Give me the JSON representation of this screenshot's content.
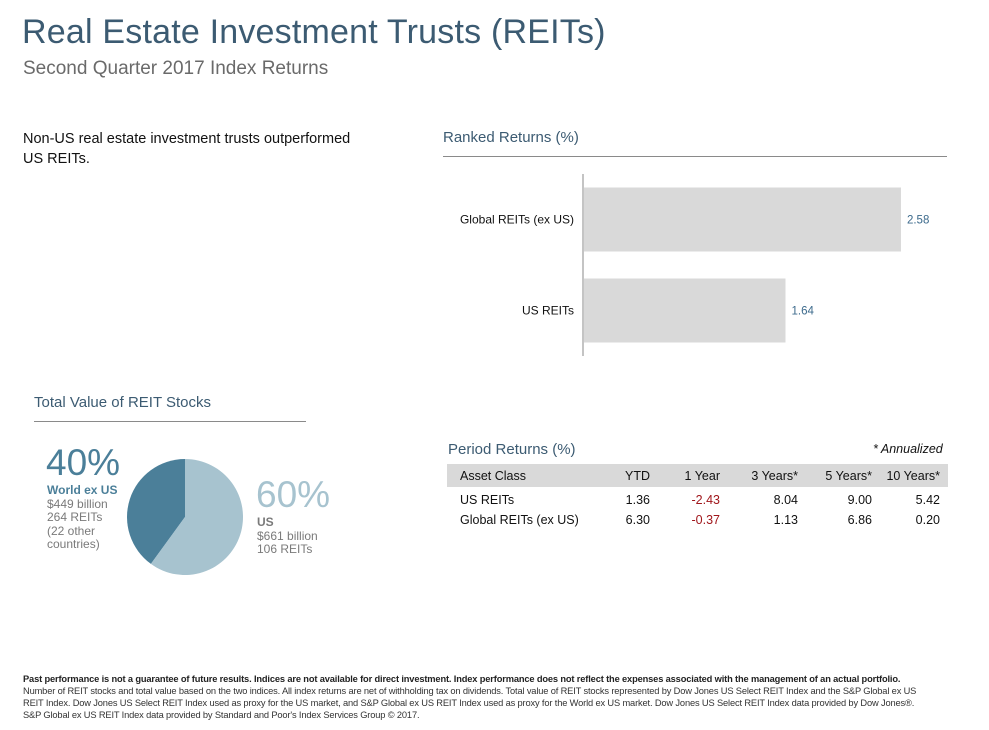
{
  "header": {
    "title": "Real Estate Investment Trusts (REITs)",
    "subtitle": "Second Quarter 2017 Index Returns"
  },
  "intro_text": "Non-US real estate investment trusts outperformed US REITs.",
  "colors": {
    "title": "#3c5b72",
    "bar": "#d9d9d9",
    "bar_value": "#3c6a8c",
    "pie_world": "#4b7f99",
    "pie_us": "#a7c3cf",
    "negative": "#a0161b"
  },
  "ranked_returns": {
    "title": "Ranked Returns (%)"
  },
  "chart_data": [
    {
      "type": "bar",
      "orientation": "horizontal",
      "title": "Ranked Returns (%)",
      "categories": [
        "Global REITs (ex US)",
        "US REITs"
      ],
      "values": [
        2.58,
        1.64
      ],
      "value_labels": [
        "2.58",
        "1.64"
      ],
      "xlim": [
        0,
        2.8
      ],
      "grid": false
    },
    {
      "type": "pie",
      "title": "Total Value of REIT Stocks",
      "slices": [
        {
          "name": "World ex US",
          "percent": 40,
          "label": "40%",
          "details": [
            "$449 billion",
            "264 REITs",
            "(22 other",
            "countries)"
          ]
        },
        {
          "name": "US",
          "percent": 60,
          "label": "60%",
          "details": [
            "$661 billion",
            "106 REITs"
          ]
        }
      ]
    }
  ],
  "total_value": {
    "title": "Total Value of REIT Stocks",
    "world": {
      "pct": "40%",
      "name": "World ex US",
      "l1": "$449 billion",
      "l2": "264 REITs",
      "l3": "(22 other",
      "l4": "countries)"
    },
    "us": {
      "pct": "60%",
      "name": "US",
      "l1": "$661 billion",
      "l2": "106 REITs"
    }
  },
  "period_returns": {
    "title": "Period Returns (%)",
    "annotation": "* Annualized",
    "headers": [
      "Asset Class",
      "YTD",
      "1 Year",
      "3 Years*",
      "5 Years*",
      "10 Years*"
    ],
    "rows": [
      {
        "name": "US REITs",
        "ytd": "1.36",
        "y1": "-2.43",
        "y3": "8.04",
        "y5": "9.00",
        "y10": "5.42"
      },
      {
        "name": "Global REITs (ex US)",
        "ytd": "6.30",
        "y1": "-0.37",
        "y3": "1.13",
        "y5": "6.86",
        "y10": "0.20"
      }
    ]
  },
  "footer": {
    "disclaimer": "Past performance is not a guarantee of future results. Indices are not available for direct investment. Index performance does not reflect the expenses associated with the management of an actual portfolio.",
    "notes": "Number of REIT stocks and total value based on the two indices. All index returns are net of withholding tax on dividends. Total value of REIT stocks represented by Dow Jones US Select REIT Index and the S&P Global ex US REIT Index. Dow Jones US Select REIT Index used as proxy for the US market, and S&P Global ex US REIT Index used as proxy for the World ex US market. Dow Jones US Select REIT Index data provided by Dow Jones®. S&P Global ex US REIT Index data provided by Standard and Poor's Index Services Group © 2017."
  }
}
